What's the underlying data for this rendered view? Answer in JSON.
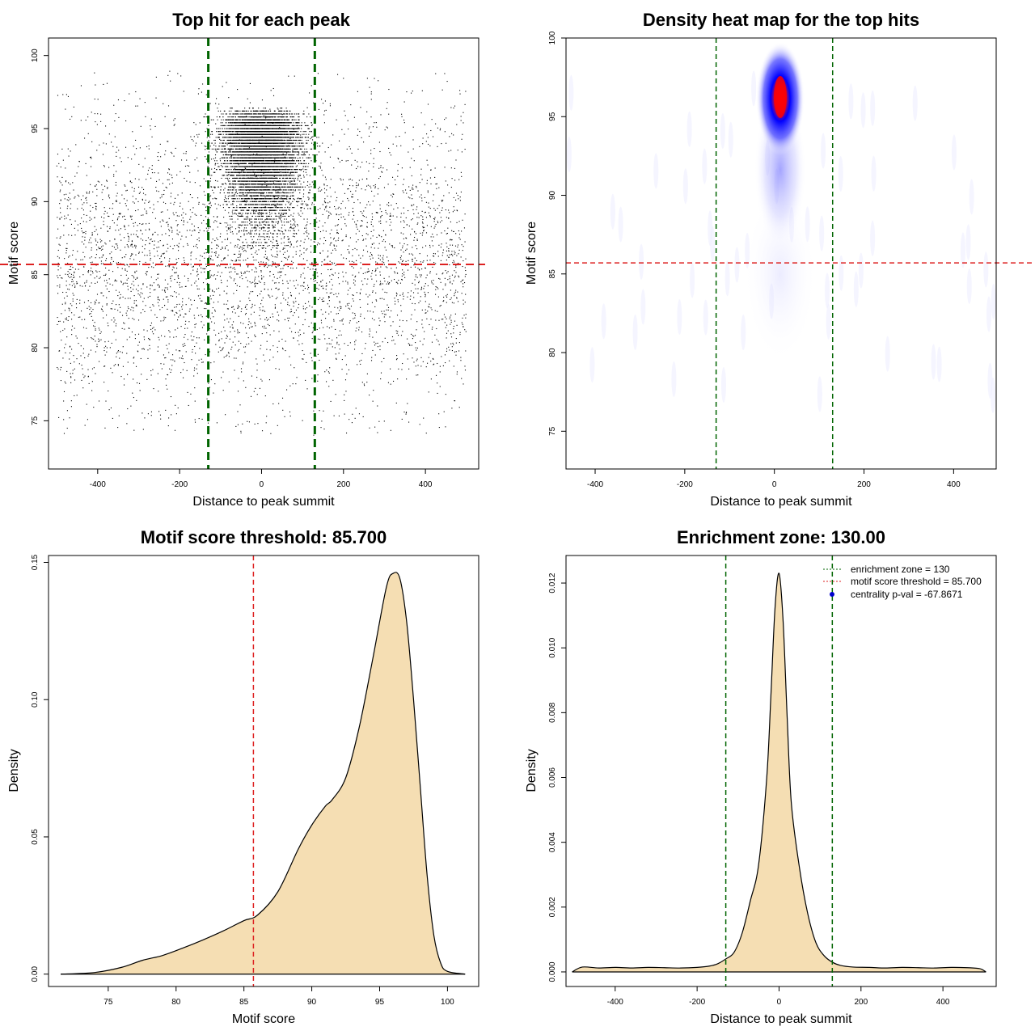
{
  "figure": {
    "panels": [
      {
        "title": "Top hit for each peak",
        "xlabel": "Distance to peak summit",
        "ylabel": "Motif score"
      },
      {
        "title": "Density heat map for the top hits",
        "xlabel": "Distance to peak summit",
        "ylabel": "Motif score"
      },
      {
        "title": "Motif score threshold: 85.700",
        "xlabel": "Motif score",
        "ylabel": "Density"
      },
      {
        "title": "Enrichment zone: 130.00",
        "xlabel": "Distance to peak summit",
        "ylabel": "Density"
      }
    ]
  },
  "colors": {
    "points": "#000000",
    "enrichment_line": "#006400",
    "threshold_line": "#dd2222",
    "density_fill": "#f5deb3",
    "heat_low": "#ffffff",
    "heat_mid": "#0000ff",
    "heat_high": "#ff0000",
    "legend_point": "#0000cc"
  },
  "chart_data": [
    {
      "type": "scatter",
      "title": "Top hit for each peak",
      "xlabel": "Distance to peak summit",
      "ylabel": "Motif score",
      "xlim": [
        -520,
        530
      ],
      "ylim": [
        71.7,
        101.2
      ],
      "x_ticks": [
        -400,
        -200,
        0,
        200,
        400
      ],
      "y_ticks": [
        75,
        80,
        85,
        90,
        95,
        100
      ],
      "x_tick_labels": [
        "-400",
        "-200",
        "0",
        "200",
        "400"
      ],
      "y_tick_labels": [
        "75",
        "80",
        "85",
        "90",
        "95",
        "100"
      ],
      "vlines": [
        -130,
        130
      ],
      "hline": 85.7,
      "distribution": {
        "x_range": [
          -500,
          500
        ],
        "score_range": [
          72.5,
          100
        ],
        "central_x_sd": 45,
        "central_score_mode": 96,
        "point_count_estimate": 17000
      },
      "grid": false
    },
    {
      "type": "heatmap",
      "title": "Density heat map for the top hits",
      "xlabel": "Distance to peak summit",
      "ylabel": "Motif score",
      "xlim": [
        -465,
        495
      ],
      "ylim": [
        72.6,
        100
      ],
      "x_ticks": [
        -400,
        -200,
        0,
        200,
        400
      ],
      "y_ticks": [
        75,
        80,
        85,
        90,
        95,
        100
      ],
      "x_tick_labels": [
        "-400",
        "-200",
        "0",
        "200",
        "400"
      ],
      "y_tick_labels": [
        "75",
        "80",
        "85",
        "90",
        "95",
        "100"
      ],
      "vlines": [
        -130,
        130
      ],
      "hline": 85.7,
      "hotspot": {
        "x": 0,
        "y": 96.2
      },
      "grid": false
    },
    {
      "type": "area",
      "title": "Motif score threshold: 85.700",
      "xlabel": "Motif score",
      "ylabel": "Density",
      "xlim": [
        70.6,
        102.3
      ],
      "ylim": [
        -0.0045,
        0.1525
      ],
      "x_ticks": [
        75,
        80,
        85,
        90,
        95,
        100
      ],
      "y_ticks": [
        0.0,
        0.05,
        0.1,
        0.15
      ],
      "x_tick_labels": [
        "75",
        "80",
        "85",
        "90",
        "95",
        "100"
      ],
      "y_tick_labels": [
        "0.00",
        "0.05",
        "0.10",
        "0.15"
      ],
      "vline": 85.7,
      "x": [
        71.5,
        74,
        76,
        77.5,
        79,
        80.5,
        82,
        83.5,
        85,
        86,
        87.5,
        89,
        90,
        91,
        91.5,
        92.5,
        93.5,
        94.5,
        95.5,
        96,
        96.5,
        97,
        97.5,
        98,
        98.5,
        99,
        99.5,
        100,
        101.3
      ],
      "y": [
        0.0,
        0.0006,
        0.0025,
        0.005,
        0.0068,
        0.0095,
        0.0125,
        0.0158,
        0.0195,
        0.0215,
        0.03,
        0.0455,
        0.0543,
        0.0612,
        0.0635,
        0.0715,
        0.09,
        0.115,
        0.141,
        0.146,
        0.144,
        0.128,
        0.1,
        0.068,
        0.036,
        0.014,
        0.004,
        0.001,
        0.0
      ],
      "grid": false
    },
    {
      "type": "area",
      "title": "Enrichment zone: 130.00",
      "xlabel": "Distance to peak summit",
      "ylabel": "Density",
      "xlim": [
        -520,
        530
      ],
      "ylim": [
        -0.00045,
        0.01285
      ],
      "x_ticks": [
        -400,
        -200,
        0,
        200,
        400
      ],
      "y_ticks": [
        0.0,
        0.002,
        0.004,
        0.006,
        0.008,
        0.01,
        0.012
      ],
      "x_tick_labels": [
        "-400",
        "-200",
        "0",
        "200",
        "400"
      ],
      "y_tick_labels": [
        "0.000",
        "0.002",
        "0.004",
        "0.006",
        "0.008",
        "0.010",
        "0.012"
      ],
      "vlines": [
        -130,
        130
      ],
      "x": [
        -505,
        -480,
        -440,
        -400,
        -360,
        -320,
        -280,
        -240,
        -200,
        -170,
        -150,
        -130,
        -110,
        -90,
        -70,
        -50,
        -30,
        -20,
        -10,
        0,
        10,
        20,
        30,
        50,
        70,
        90,
        110,
        130,
        150,
        180,
        220,
        260,
        300,
        340,
        380,
        420,
        460,
        490,
        505
      ],
      "y": [
        0.0,
        0.00015,
        0.00012,
        0.00014,
        0.00012,
        0.00014,
        0.00013,
        0.00012,
        0.00014,
        0.00018,
        0.00025,
        0.0004,
        0.0006,
        0.0012,
        0.0022,
        0.0033,
        0.006,
        0.0085,
        0.0112,
        0.0123,
        0.0108,
        0.0078,
        0.0052,
        0.0032,
        0.0018,
        0.0009,
        0.0005,
        0.0003,
        0.0002,
        0.00015,
        0.00014,
        0.00012,
        0.00014,
        0.00013,
        0.00012,
        0.00014,
        0.00013,
        0.0001,
        0.0
      ],
      "grid": false,
      "legend": {
        "position": "top-right",
        "entries": [
          {
            "label": "enrichment zone = 130",
            "symbol": "dotted-line",
            "color": "#006400"
          },
          {
            "label": "motif score threshold = 85.700",
            "symbol": "dotted-line",
            "color": "#dd2222"
          },
          {
            "label": "centrality p-val = -67.8671",
            "symbol": "point",
            "color": "#0000cc"
          }
        ]
      }
    }
  ]
}
